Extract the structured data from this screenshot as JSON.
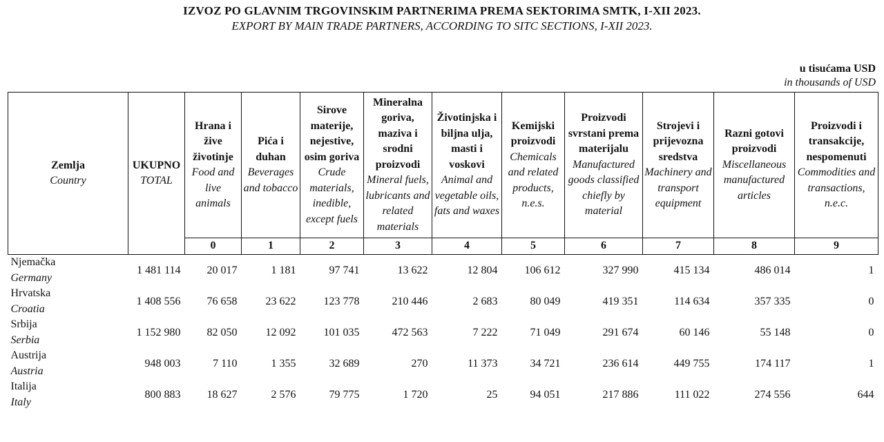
{
  "title": "IZVOZ PO GLAVNIM TRGOVINSKIM PARTNERIMA PREMA SEKTORIMA SMTK, I-XII 2023.",
  "subtitle": "EXPORT BY MAIN TRADE PARTNERS, ACCORDING TO SITC SECTIONS, I-XII 2023.",
  "units": {
    "hr": "u tisućama USD",
    "en": "in thousands of USD"
  },
  "header": {
    "country": {
      "hr": "Zemlja",
      "en": "Country"
    },
    "total": {
      "hr": "UKUPNO",
      "en": "TOTAL"
    },
    "sections": [
      {
        "num": "0",
        "hr": "Hrana i žive životinje",
        "en": "Food and live animals"
      },
      {
        "num": "1",
        "hr": "Pića i duhan",
        "en": "Beverages and tobacco"
      },
      {
        "num": "2",
        "hr": "Sirove materije, nejestive, osim goriva",
        "en": "Crude materials, inedible, except fuels"
      },
      {
        "num": "3",
        "hr": "Mineralna goriva, maziva i srodni proizvodi",
        "en": "Mineral fuels, lubricants and related materials"
      },
      {
        "num": "4",
        "hr": "Životinjska i biljna ulja, masti i voskovi",
        "en": "Animal and vegetable oils, fats and waxes"
      },
      {
        "num": "5",
        "hr": "Kemijski proizvodi",
        "en": "Chemicals and related products, n.e.s."
      },
      {
        "num": "6",
        "hr": "Proizvodi svrstani prema materijalu",
        "en": "Manufactured goods classified chiefly by material"
      },
      {
        "num": "7",
        "hr": "Strojevi i prijevozna sredstva",
        "en": "Machinery and transport equipment"
      },
      {
        "num": "8",
        "hr": "Razni gotovi proizvodi",
        "en": "Miscellaneous manufactured articles"
      },
      {
        "num": "9",
        "hr": "Proizvodi i transakcije, nespomenuti",
        "en": "Commodities and transactions, n.e.c."
      }
    ]
  },
  "rows": [
    {
      "hr": "Njemačka",
      "en": "Germany",
      "values": [
        "1 481 114",
        "20 017",
        "1 181",
        "97 741",
        "13 622",
        "12 804",
        "106 612",
        "327 990",
        "415 134",
        "486 014",
        "1"
      ]
    },
    {
      "hr": "Hrvatska",
      "en": "Croatia",
      "values": [
        "1 408 556",
        "76 658",
        "23 622",
        "123 778",
        "210 446",
        "2 683",
        "80 049",
        "419 351",
        "114 634",
        "357 335",
        "0"
      ]
    },
    {
      "hr": "Srbija",
      "en": "Serbia",
      "values": [
        "1 152 980",
        "82 050",
        "12 092",
        "101 035",
        "472 563",
        "7 222",
        "71 049",
        "291 674",
        "60 146",
        "55 148",
        "0"
      ]
    },
    {
      "hr": "Austrija",
      "en": "Austria",
      "values": [
        "948 003",
        "7 110",
        "1 355",
        "32 689",
        "270",
        "11 373",
        "34 721",
        "236 614",
        "449 755",
        "174 117",
        "1"
      ]
    },
    {
      "hr": "Italija",
      "en": "Italy",
      "values": [
        "800 883",
        "18 627",
        "2 576",
        "79 775",
        "1 720",
        "25",
        "94 051",
        "217 886",
        "111 022",
        "274 556",
        "644"
      ]
    }
  ]
}
